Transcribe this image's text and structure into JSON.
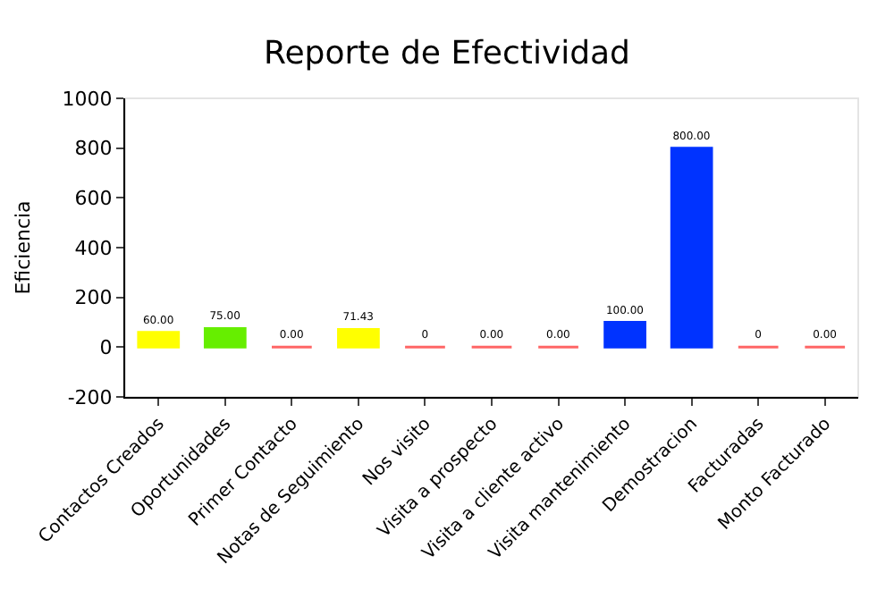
{
  "chart_data": {
    "type": "bar",
    "title": "Reporte de Efectividad",
    "ylabel": "Eficiencia",
    "categories": [
      "Contactos Creados",
      "Oportunidades",
      "Primer Contacto",
      "Notas de Seguimiento",
      "Nos visito",
      "Visita a prospecto",
      "Visita a cliente activo",
      "Visita mantenimiento",
      "Demostracion",
      "Facturadas",
      "Monto Facturado"
    ],
    "values": [
      60,
      75,
      0,
      71.43,
      0,
      0,
      0,
      100,
      800,
      0,
      0
    ],
    "value_labels": [
      "60.00",
      "75.00",
      "0.00",
      "71.43",
      "0",
      "0.00",
      "0.00",
      "100.00",
      "800.00",
      "0",
      "0.00"
    ],
    "colors": [
      "#ffff00",
      "#66ee00",
      "#ff6666",
      "#ffff00",
      "#ff6666",
      "#ff6666",
      "#ff6666",
      "#0033ff",
      "#0033ff",
      "#ff6666",
      "#ff6666"
    ],
    "ylim": [
      -200,
      1000
    ],
    "yticks": [
      -200,
      0,
      200,
      400,
      600,
      800,
      1000
    ],
    "grid": false,
    "legend": false
  }
}
